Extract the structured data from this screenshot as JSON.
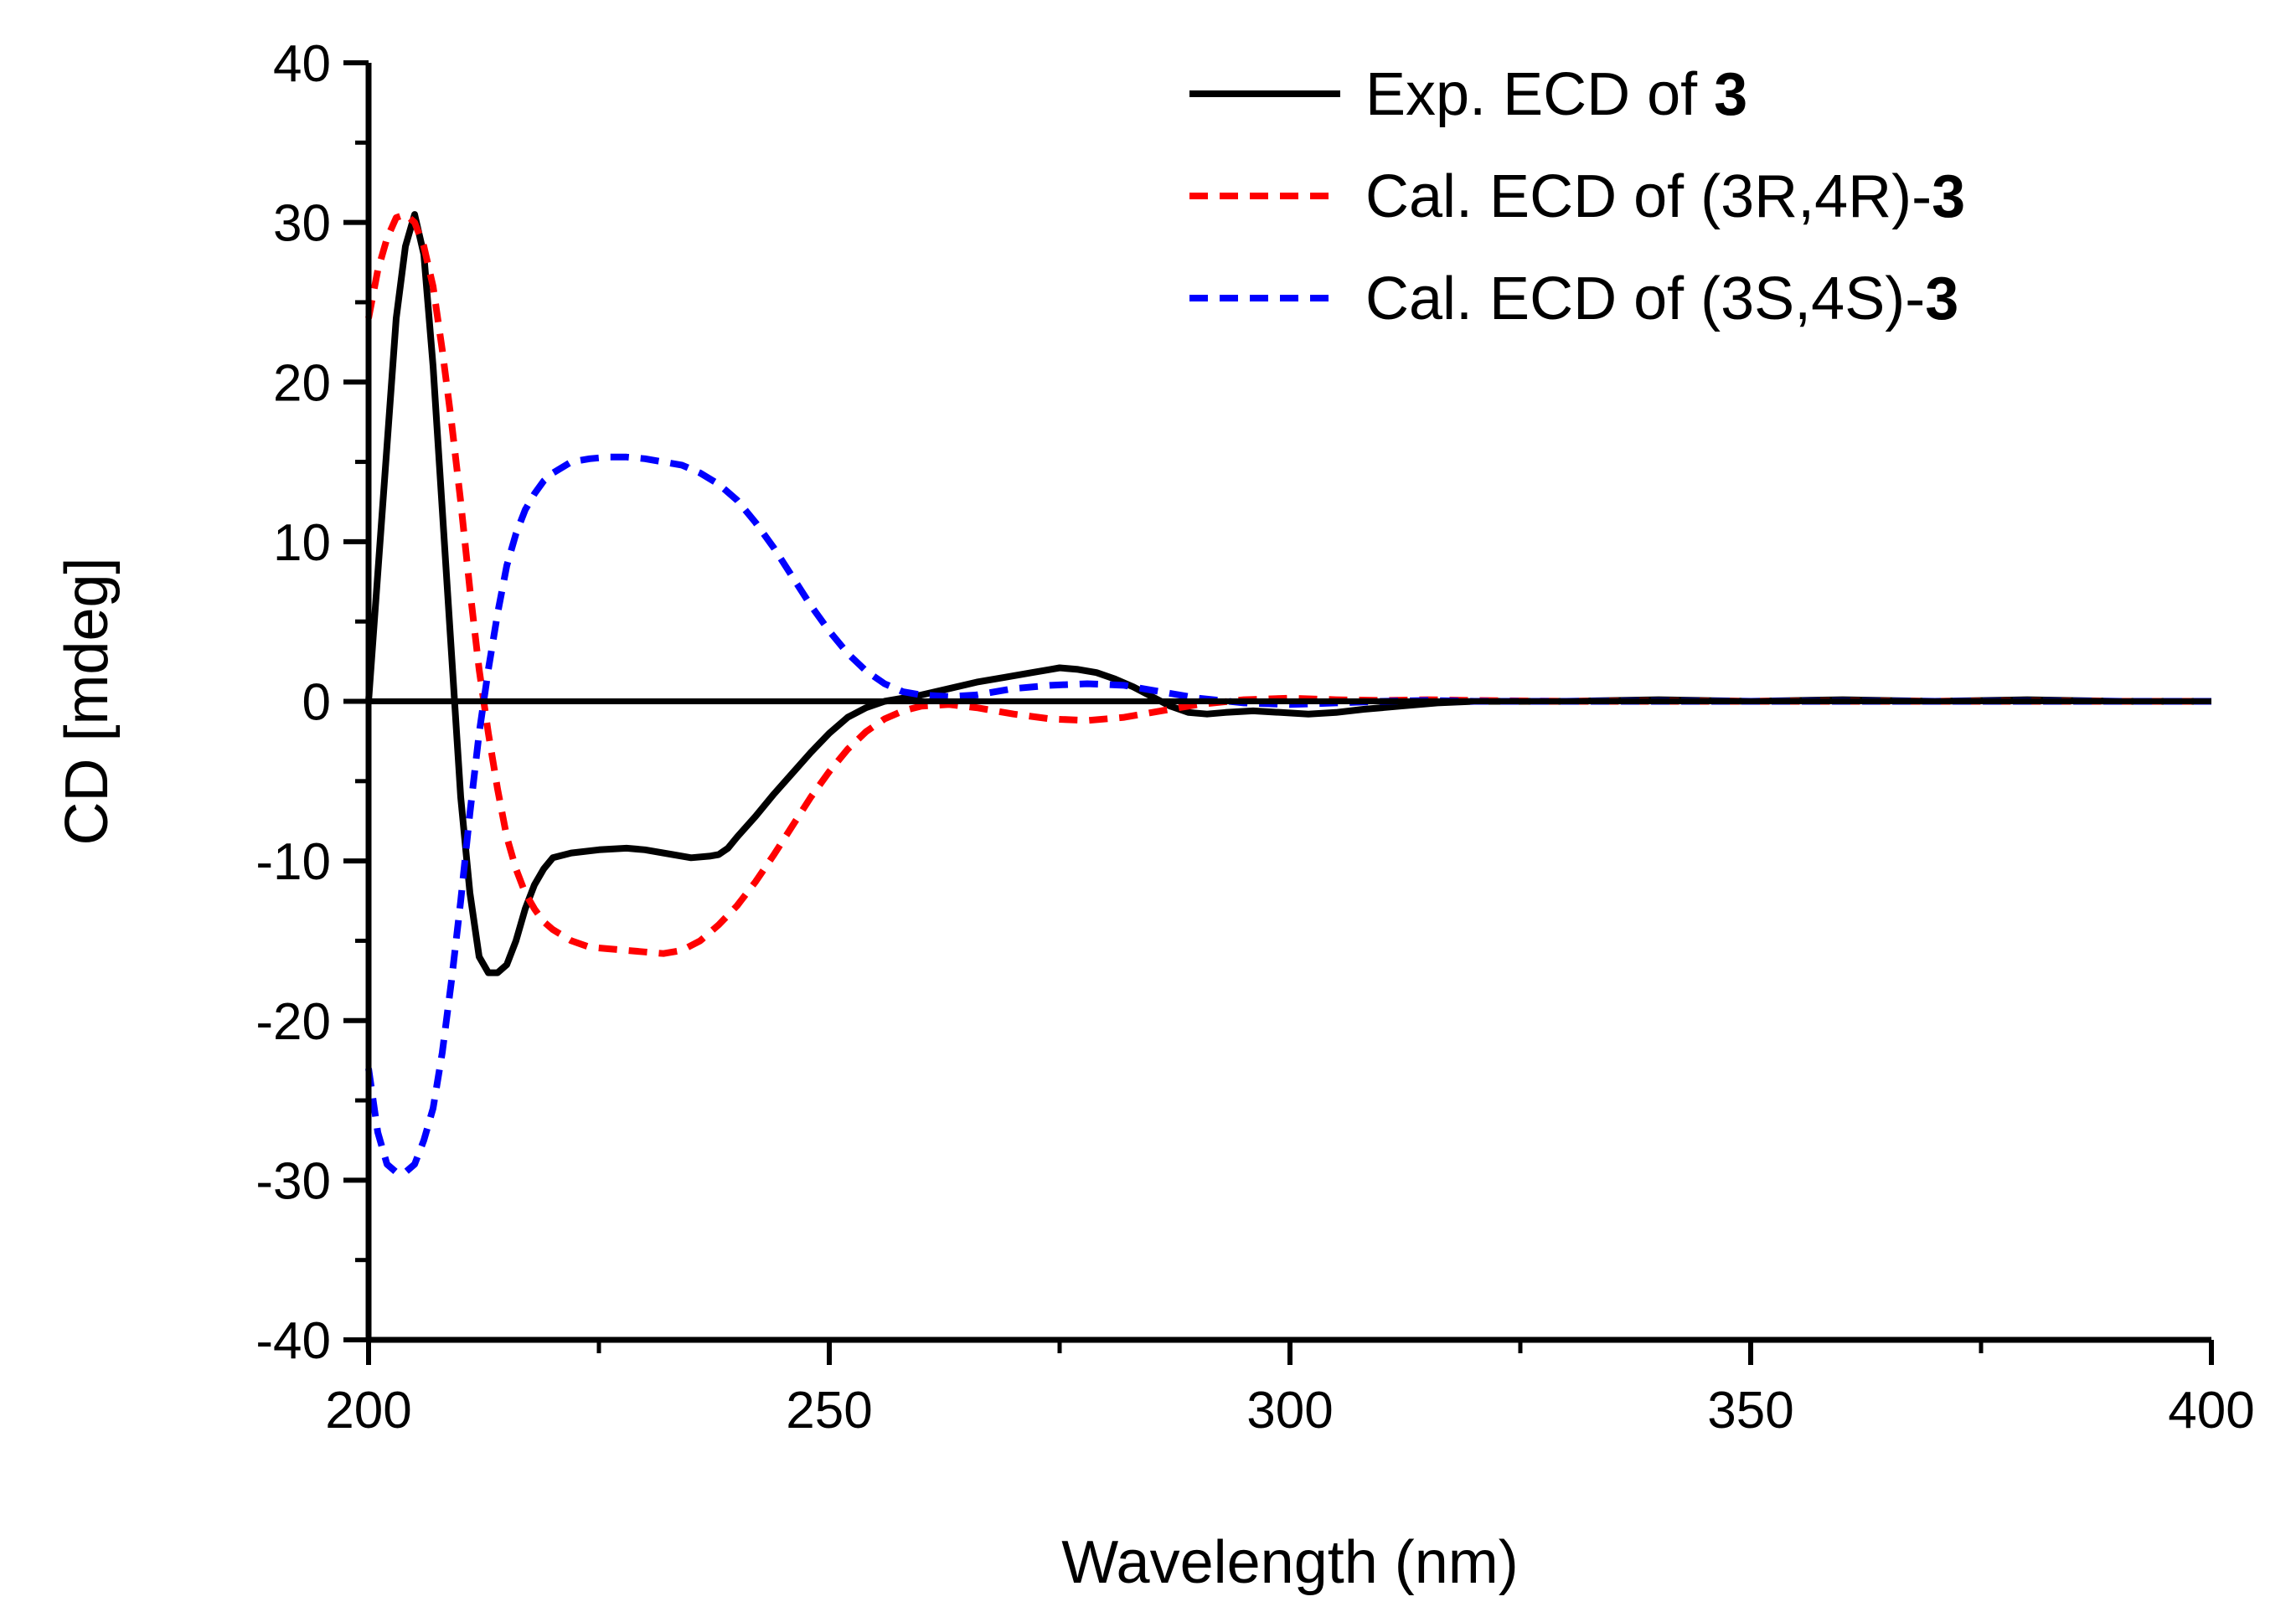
{
  "chart_data": {
    "type": "line",
    "title": "",
    "xlabel": "Wavelength (nm)",
    "ylabel": "CD [mdeg]",
    "xlim": [
      200,
      400
    ],
    "ylim": [
      -40,
      40
    ],
    "x_ticks": [
      200,
      250,
      300,
      350,
      400
    ],
    "y_ticks": [
      -40,
      -30,
      -20,
      -10,
      0,
      10,
      20,
      30,
      40
    ],
    "x_tick_labels": [
      "200",
      "250",
      "300",
      "350",
      "400"
    ],
    "y_tick_labels": [
      "-40",
      "-30",
      "-20",
      "-10",
      "0",
      "10",
      "20",
      "30",
      "40"
    ],
    "grid": false,
    "legend_position": "top-right",
    "zero_line": 0,
    "series": [
      {
        "name": "Exp. ECD of 3",
        "label_prefix": "Exp. ECD of ",
        "label_bold": "3",
        "color": "#000000",
        "style": "solid",
        "x": [
          200,
          201,
          202,
          203,
          204,
          205,
          206,
          207,
          208,
          209,
          210,
          211,
          212,
          213,
          214,
          215,
          216,
          217,
          218,
          219,
          220,
          222,
          225,
          228,
          230,
          233,
          235,
          237,
          238,
          239,
          240,
          242,
          244,
          246,
          248,
          250,
          252,
          254,
          256,
          258,
          260,
          263,
          266,
          269,
          272,
          274,
          275,
          277,
          279,
          281,
          283,
          285,
          287,
          289,
          291,
          293,
          296,
          299,
          302,
          305,
          308,
          312,
          316,
          320,
          330,
          340,
          350,
          360,
          370,
          380,
          390,
          400
        ],
        "y": [
          0,
          8,
          16,
          24,
          28.5,
          30.5,
          28,
          21,
          12,
          3,
          -6,
          -12,
          -16,
          -17,
          -17,
          -16.5,
          -15,
          -13,
          -11.5,
          -10.5,
          -9.8,
          -9.5,
          -9.3,
          -9.2,
          -9.3,
          -9.6,
          -9.8,
          -9.7,
          -9.6,
          -9.2,
          -8.5,
          -7.2,
          -5.8,
          -4.5,
          -3.2,
          -2.0,
          -1.0,
          -0.4,
          0.0,
          0.2,
          0.4,
          0.8,
          1.2,
          1.5,
          1.8,
          2.0,
          2.1,
          2.0,
          1.8,
          1.4,
          0.9,
          0.3,
          -0.3,
          -0.7,
          -0.8,
          -0.7,
          -0.6,
          -0.7,
          -0.8,
          -0.7,
          -0.5,
          -0.3,
          -0.1,
          0.0,
          0.0,
          0.1,
          0.0,
          0.1,
          0.0,
          0.1,
          0.0,
          0.0
        ]
      },
      {
        "name": "Cal. ECD of (3R,4R)-3",
        "label_prefix": "Cal. ECD of (3R,4R)-",
        "label_bold": "3",
        "color": "#ff0000",
        "style": "dashed",
        "x": [
          200,
          201,
          202,
          203,
          204,
          205,
          206,
          207,
          208,
          209,
          210,
          211,
          212,
          213,
          214,
          215,
          216,
          217,
          218,
          219,
          220,
          222,
          224,
          226,
          228,
          230,
          232,
          234,
          236,
          238,
          240,
          242,
          244,
          246,
          248,
          250,
          252,
          254,
          256,
          258,
          260,
          263,
          266,
          270,
          274,
          278,
          282,
          286,
          290,
          295,
          300,
          305,
          310,
          315,
          320,
          330,
          350,
          400
        ],
        "y": [
          24,
          27,
          29,
          30.3,
          30.5,
          30,
          28.5,
          26,
          22,
          17.5,
          12.5,
          7,
          2,
          -2,
          -5.5,
          -8.5,
          -10.5,
          -12,
          -13,
          -13.8,
          -14.3,
          -15,
          -15.4,
          -15.5,
          -15.6,
          -15.7,
          -15.8,
          -15.6,
          -15,
          -14,
          -12.8,
          -11.3,
          -9.6,
          -7.8,
          -6.0,
          -4.4,
          -3.0,
          -1.9,
          -1.1,
          -0.6,
          -0.3,
          -0.2,
          -0.4,
          -0.8,
          -1.1,
          -1.2,
          -1.0,
          -0.6,
          -0.2,
          0.1,
          0.2,
          0.1,
          0.05,
          0.1,
          0.05,
          0.0,
          0.0,
          0.0
        ]
      },
      {
        "name": "Cal. ECD of (3S,4S)-3",
        "label_prefix": "Cal. ECD of (3S,4S)-",
        "label_bold": "3",
        "color": "#0000ff",
        "style": "dashed",
        "x": [
          200,
          201,
          202,
          203,
          204,
          205,
          206,
          207,
          208,
          209,
          210,
          211,
          212,
          213,
          214,
          215,
          216,
          217,
          218,
          219,
          220,
          222,
          224,
          226,
          228,
          230,
          232,
          234,
          236,
          238,
          240,
          242,
          244,
          246,
          248,
          250,
          252,
          254,
          256,
          258,
          260,
          263,
          266,
          270,
          274,
          278,
          282,
          286,
          290,
          295,
          300,
          305,
          310,
          315,
          320,
          330,
          350,
          400
        ],
        "y": [
          -23,
          -27,
          -29,
          -29.5,
          -29.5,
          -29,
          -27.5,
          -25.5,
          -22,
          -17.5,
          -12.5,
          -7,
          -2,
          2,
          5.5,
          8.5,
          10.5,
          12,
          13,
          13.8,
          14.3,
          15,
          15.2,
          15.3,
          15.3,
          15.2,
          15.0,
          14.8,
          14.3,
          13.6,
          12.6,
          11.2,
          9.6,
          7.8,
          6.0,
          4.4,
          3.0,
          1.9,
          1.1,
          0.6,
          0.4,
          0.3,
          0.4,
          0.8,
          1.0,
          1.1,
          1.0,
          0.6,
          0.2,
          -0.1,
          -0.2,
          -0.1,
          0.0,
          0.05,
          0.0,
          0.0,
          0.0,
          0.0
        ]
      }
    ]
  }
}
